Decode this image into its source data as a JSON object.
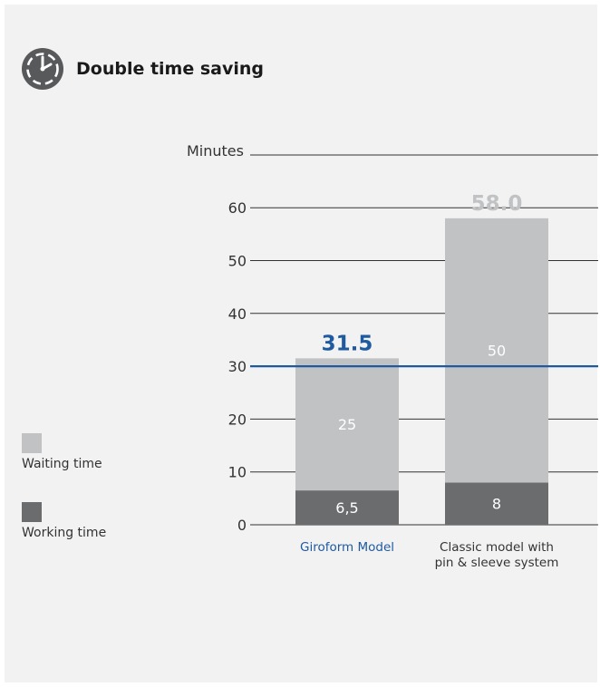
{
  "colors": {
    "waiting": "#c1c2c4",
    "working": "#6b6c6e",
    "highlight": "#1f5aa0",
    "total_gray": "#c1c2c4",
    "axis": "#333333"
  },
  "header": {
    "icon": "clock-icon",
    "title": "Double time saving"
  },
  "legend": {
    "items": [
      {
        "key": "waiting",
        "label": "Waiting time"
      },
      {
        "key": "working",
        "label": "Working time"
      }
    ]
  },
  "chart_data": {
    "type": "bar",
    "stacked": true,
    "title": "Double time saving",
    "ylabel": "Minutes",
    "ylim": [
      0,
      60
    ],
    "yticks": [
      0,
      10,
      20,
      30,
      40,
      50,
      60
    ],
    "categories": [
      "Giroform Model",
      "Classic model with pin & sleeve system"
    ],
    "category_lines": [
      [
        "Giroform Model"
      ],
      [
        "Classic model with",
        "pin & sleeve system"
      ]
    ],
    "series": [
      {
        "name": "Working time",
        "values": [
          6.5,
          8
        ],
        "labels": [
          "6,5",
          "8"
        ]
      },
      {
        "name": "Waiting time",
        "values": [
          25,
          50
        ],
        "labels": [
          "25",
          "50"
        ]
      }
    ],
    "totals": [
      31.5,
      58.0
    ],
    "total_labels": [
      "31.5",
      "58.0"
    ],
    "reference_line": 30,
    "highlight_category": 0,
    "grid": true
  }
}
